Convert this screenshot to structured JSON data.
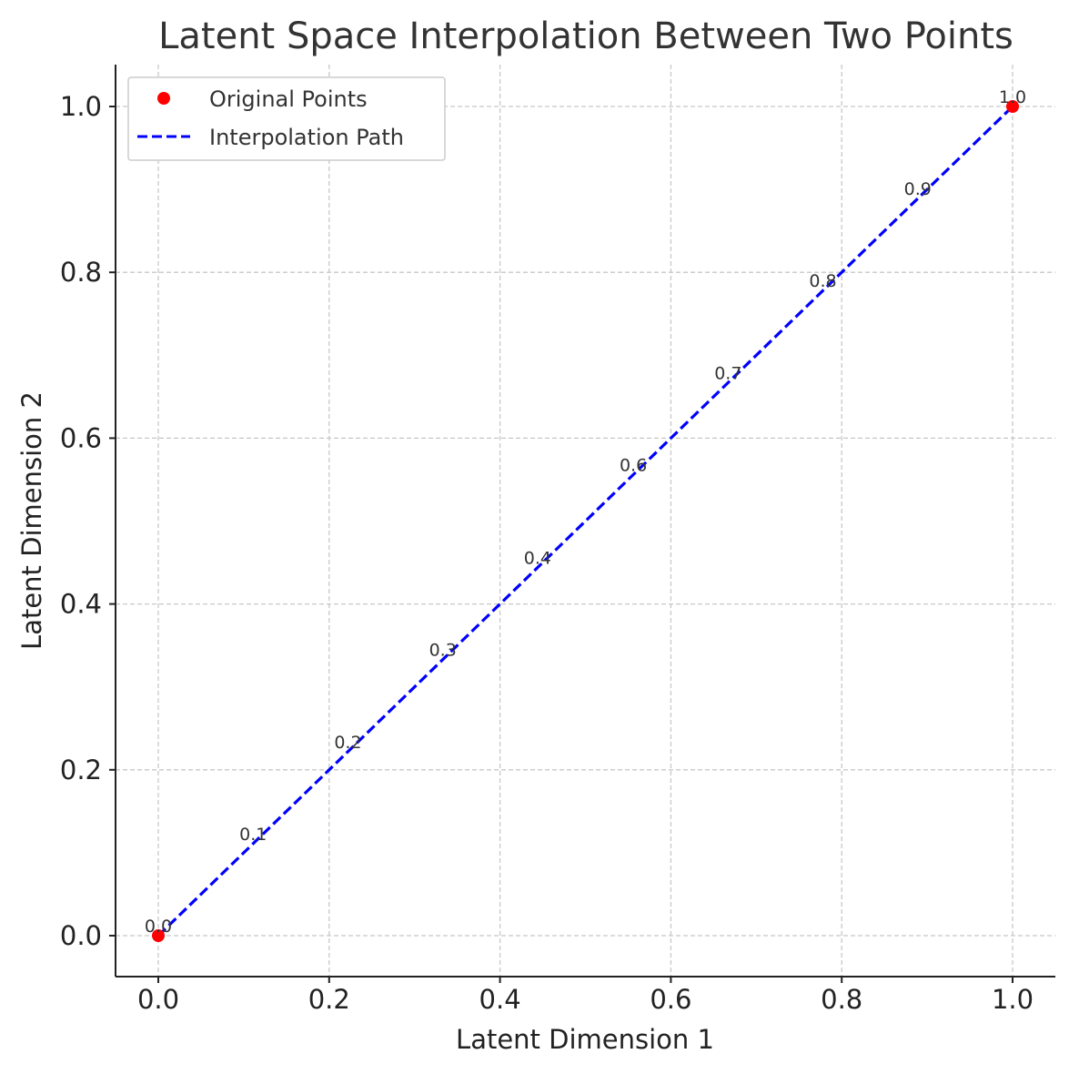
{
  "chart_data": {
    "type": "line",
    "title": "Latent Space Interpolation Between Two Points",
    "xlabel": "Latent Dimension 1",
    "ylabel": "Latent Dimension 2",
    "xlim": [
      -0.05,
      1.05
    ],
    "ylim": [
      -0.05,
      1.05
    ],
    "xticks": [
      "0.0",
      "0.2",
      "0.4",
      "0.6",
      "0.8",
      "1.0"
    ],
    "yticks": [
      "0.0",
      "0.2",
      "0.4",
      "0.6",
      "0.8",
      "1.0"
    ],
    "grid": true,
    "legend_position": "top-left",
    "series": [
      {
        "name": "Original Points",
        "kind": "scatter",
        "color": "#ff0000",
        "x": [
          0.0,
          1.0
        ],
        "y": [
          0.0,
          1.0
        ]
      },
      {
        "name": "Interpolation Path",
        "kind": "line",
        "style": "dashed",
        "color": "#0000ff",
        "x": [
          0.0,
          0.1,
          0.2,
          0.3,
          0.4,
          0.5,
          0.6,
          0.7,
          0.8,
          0.9,
          1.0
        ],
        "y": [
          0.0,
          0.1,
          0.2,
          0.3,
          0.4,
          0.5,
          0.6,
          0.7,
          0.8,
          0.9,
          1.0
        ]
      }
    ],
    "annotations": [
      {
        "text": "0.0",
        "x": 0.0,
        "y": 0.0
      },
      {
        "text": "0.1",
        "x": 0.111,
        "y": 0.111
      },
      {
        "text": "0.2",
        "x": 0.222,
        "y": 0.222
      },
      {
        "text": "0.3",
        "x": 0.333,
        "y": 0.333
      },
      {
        "text": "0.4",
        "x": 0.444,
        "y": 0.444
      },
      {
        "text": "0.6",
        "x": 0.556,
        "y": 0.556
      },
      {
        "text": "0.7",
        "x": 0.667,
        "y": 0.667
      },
      {
        "text": "0.8",
        "x": 0.778,
        "y": 0.778
      },
      {
        "text": "0.9",
        "x": 0.889,
        "y": 0.889
      },
      {
        "text": "1.0",
        "x": 1.0,
        "y": 1.0
      }
    ]
  }
}
